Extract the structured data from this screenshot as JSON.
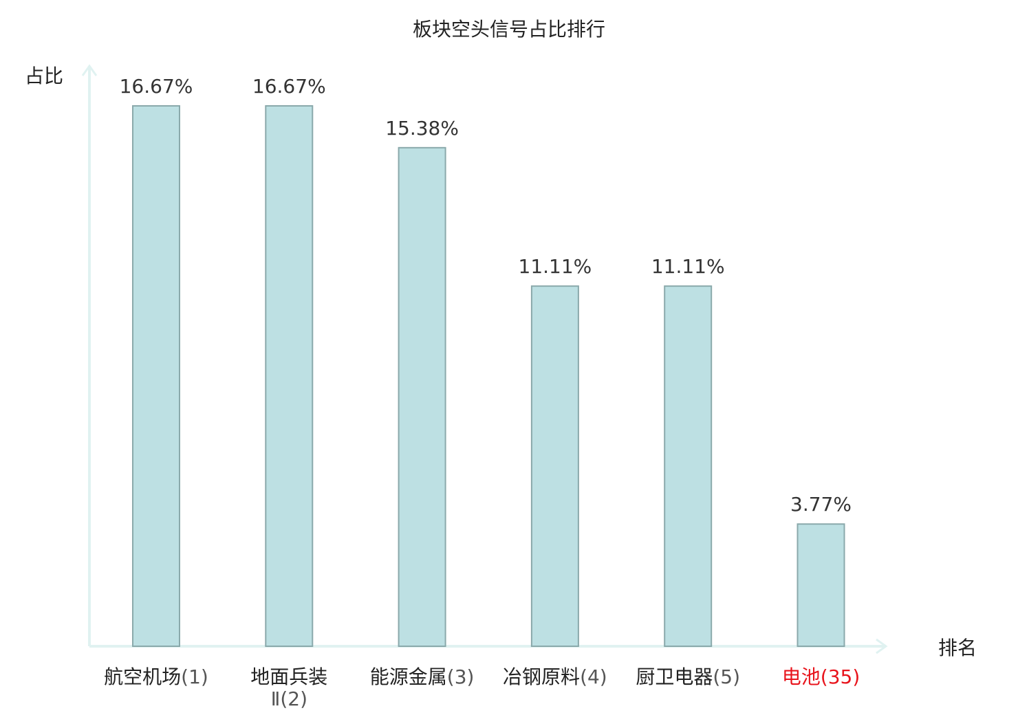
{
  "chart_data": {
    "type": "bar",
    "title": "板块空头信号占比排行",
    "xlabel": "排名",
    "ylabel": "占比",
    "ylim": [
      0,
      18
    ],
    "grid": false,
    "categories": [
      {
        "name": "航空机场",
        "rank": "(1)"
      },
      {
        "name": "地面兵装",
        "name2": "Ⅱ",
        "rank": "(2)"
      },
      {
        "name": "能源金属",
        "rank": "(3)"
      },
      {
        "name": "冶钢原料",
        "rank": "(4)"
      },
      {
        "name": "厨卫电器",
        "rank": "(5)"
      },
      {
        "name": "电池",
        "rank": "(35)",
        "highlight": true
      }
    ],
    "values": [
      16.67,
      16.67,
      15.38,
      11.11,
      11.11,
      3.77
    ],
    "value_labels": [
      "16.67%",
      "16.67%",
      "15.38%",
      "11.11%",
      "11.11%",
      "3.77%"
    ]
  },
  "colors": {
    "bar_fill": "#bde0e3",
    "bar_stroke": "#8aa9ab",
    "axis": "#e0f2f1",
    "highlight_text": "#e8141c",
    "text": "#222222"
  }
}
